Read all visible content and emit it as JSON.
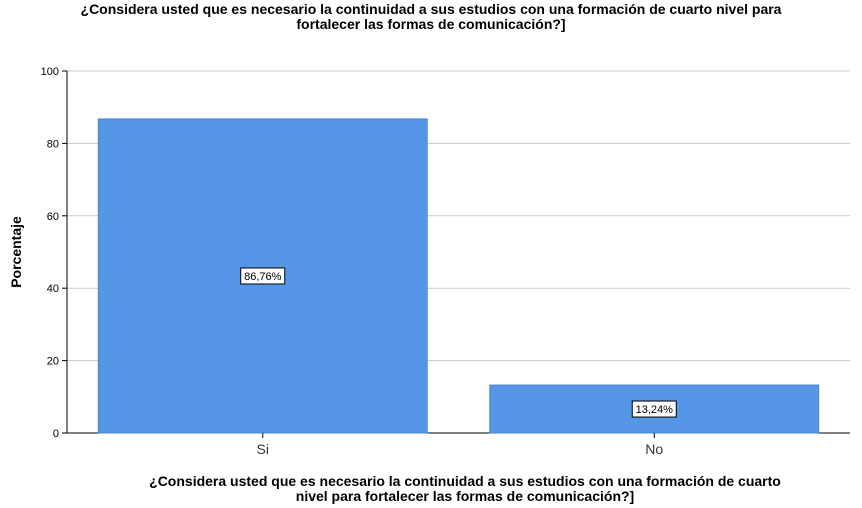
{
  "chart_data": {
    "type": "bar",
    "title_line1": "¿Considera usted que es necesario la continuidad a sus estudios  con una formación de cuarto nivel para",
    "title_line2": "fortalecer las formas de comunicación?]",
    "xlabel_line1": "¿Considera usted que es necesario la continuidad a sus estudios  con una formación de cuarto",
    "xlabel_line2": "nivel para fortalecer las formas de comunicación?]",
    "ylabel": "Porcentaje",
    "categories": [
      "Si",
      "No"
    ],
    "values": [
      86.76,
      13.24
    ],
    "data_labels": [
      "86,76%",
      "13,24%"
    ],
    "ylim": [
      0,
      100
    ],
    "yticks": [
      0,
      20,
      40,
      60,
      80,
      100
    ],
    "grid": true,
    "bar_color": "#5596e6"
  }
}
